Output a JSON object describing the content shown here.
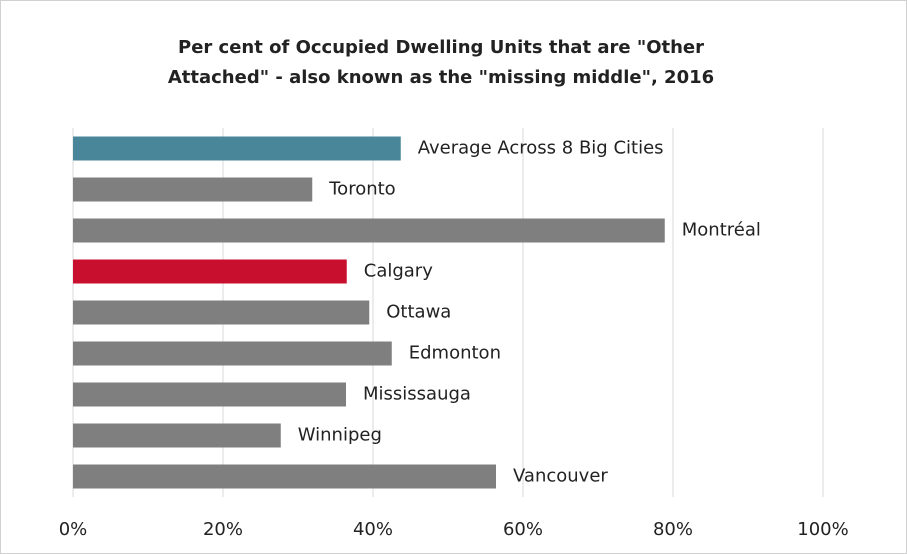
{
  "chart_data": {
    "type": "barh",
    "title": [
      "Per cent of Occupied Dwelling Units that are \"Other",
      "Attached\" - also known as the \"missing middle\", 2016"
    ],
    "categories": [
      "Average Across 8 Big Cities",
      "Toronto",
      "Montréal",
      "Calgary",
      "Ottawa",
      "Edmonton",
      "Mississauga",
      "Winnipeg",
      "Vancouver"
    ],
    "values": [
      43.7,
      31.9,
      78.9,
      36.5,
      39.5,
      42.5,
      36.4,
      27.7,
      56.4
    ],
    "colors": [
      "#4a8699",
      "#7f7f7f",
      "#7f7f7f",
      "#c8102e",
      "#7f7f7f",
      "#7f7f7f",
      "#7f7f7f",
      "#7f7f7f",
      "#7f7f7f"
    ],
    "xlim": [
      0,
      100
    ],
    "xticks": [
      {
        "value": 0,
        "label": "0%"
      },
      {
        "value": 20,
        "label": "20%"
      },
      {
        "value": 40,
        "label": "40%"
      },
      {
        "value": 60,
        "label": "60%"
      },
      {
        "value": 80,
        "label": "80%"
      },
      {
        "value": 100,
        "label": "100%"
      }
    ],
    "grid": true
  }
}
